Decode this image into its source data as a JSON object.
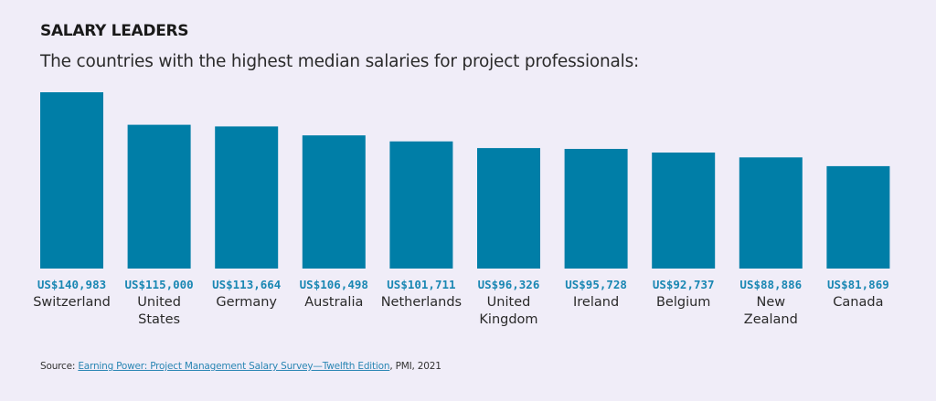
{
  "chart_data": {
    "type": "bar",
    "title": "SALARY LEADERS",
    "subtitle": "The countries with the highest median salaries for project professionals:",
    "xlabel": "",
    "ylabel": "",
    "ylim": [
      0,
      140983
    ],
    "grid": false,
    "bar_color": "#007ea7",
    "label_color": "#1a87b3",
    "categories": [
      [
        "Switzerland"
      ],
      [
        "United",
        "States"
      ],
      [
        "Germany"
      ],
      [
        "Australia"
      ],
      [
        "Netherlands"
      ],
      [
        "United",
        "Kingdom"
      ],
      [
        "Ireland"
      ],
      [
        "Belgium"
      ],
      [
        "New",
        "Zealand"
      ],
      [
        "Canada"
      ]
    ],
    "values": [
      140983,
      115000,
      113664,
      106498,
      101711,
      96326,
      95728,
      92737,
      88886,
      81869
    ],
    "value_labels": [
      "US$140,983",
      "US$115,000",
      "US$113,664",
      "US$106,498",
      "US$101,711",
      "US$96,326",
      "US$95,728",
      "US$92,737",
      "US$88,886",
      "US$81,869"
    ]
  },
  "source": {
    "prefix": "Source: ",
    "link_text": "Earning Power: Project Management Salary Survey—Twelfth Edition",
    "suffix": ", PMI, 2021"
  }
}
